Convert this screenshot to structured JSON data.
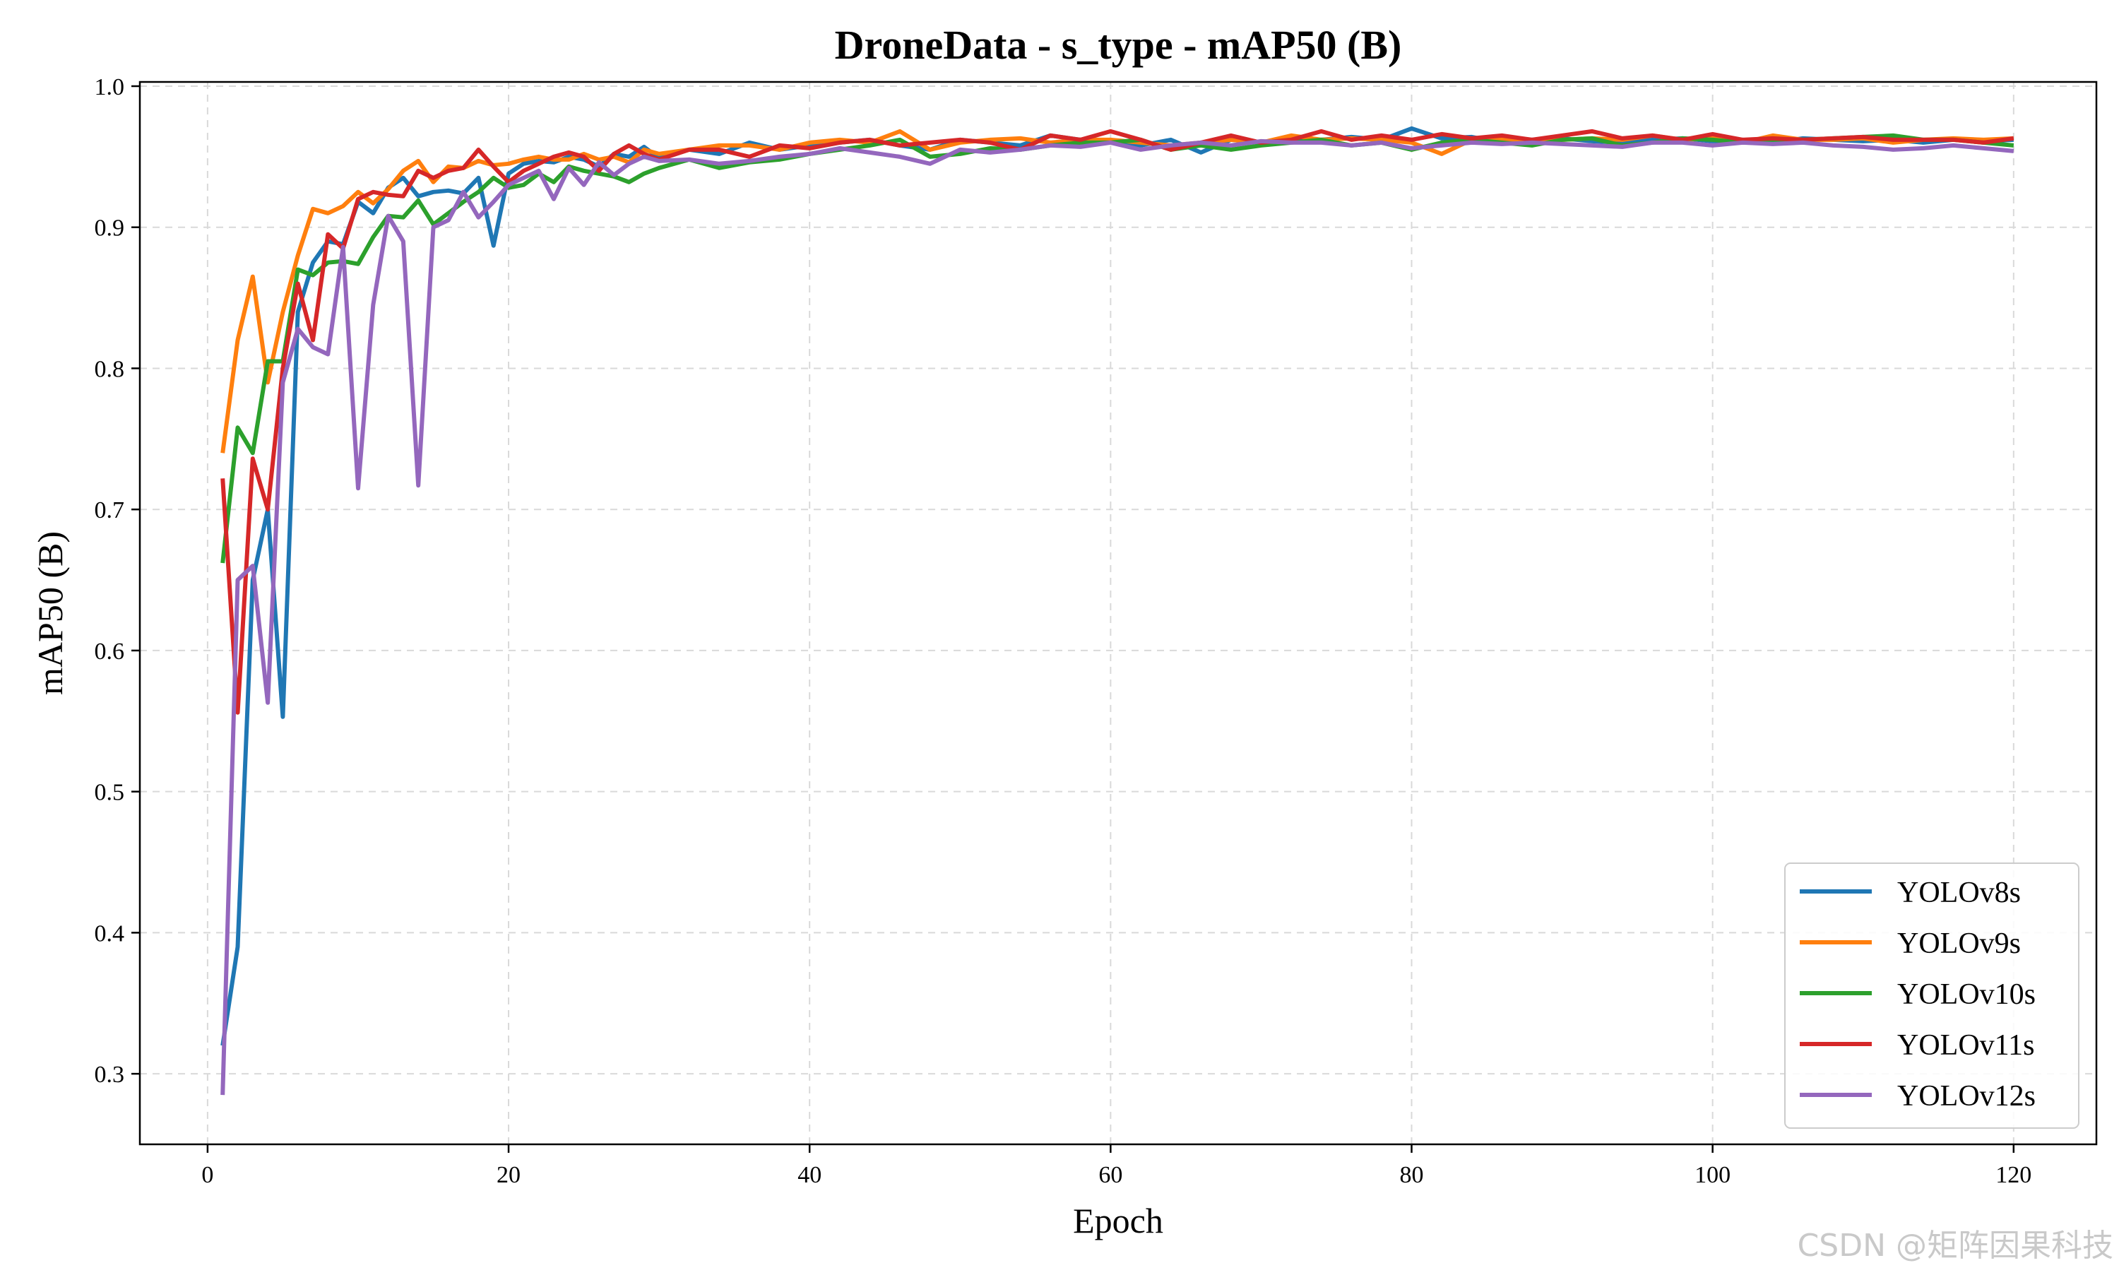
{
  "chart_data": {
    "type": "line",
    "title": "DroneData - s_type - mAP50 (B)",
    "xlabel": "Epoch",
    "ylabel": "mAP50 (B)",
    "xlim": [
      -4.5,
      125.5
    ],
    "ylim": [
      0.25,
      1.003
    ],
    "x_ticks": [
      0,
      20,
      40,
      60,
      80,
      100,
      120
    ],
    "y_ticks": [
      0.3,
      0.4,
      0.5,
      0.6,
      0.7,
      0.8,
      0.9,
      1.0
    ],
    "x_tick_labels": [
      "0",
      "20",
      "40",
      "60",
      "80",
      "100",
      "120"
    ],
    "y_tick_labels": [
      "0.3",
      "0.4",
      "0.5",
      "0.6",
      "0.7",
      "0.8",
      "0.9",
      "1.0"
    ],
    "grid": true,
    "legend_position": "bottom-right",
    "series": [
      {
        "name": "YOLOv8s",
        "color": "#1f77b4",
        "x": [
          1,
          2,
          3,
          4,
          5,
          6,
          7,
          8,
          9,
          10,
          11,
          12,
          13,
          14,
          15,
          16,
          17,
          18,
          19,
          20,
          21,
          22,
          23,
          24,
          25,
          26,
          27,
          28,
          29,
          30,
          32,
          34,
          36,
          38,
          40,
          42,
          44,
          46,
          48,
          50,
          52,
          54,
          56,
          58,
          60,
          62,
          64,
          66,
          68,
          70,
          72,
          74,
          76,
          78,
          80,
          82,
          84,
          86,
          88,
          90,
          92,
          94,
          96,
          98,
          100,
          102,
          104,
          106,
          108,
          110,
          112,
          114,
          116,
          118,
          120
        ],
        "values": [
          0.32,
          0.39,
          0.65,
          0.7,
          0.553,
          0.84,
          0.875,
          0.89,
          0.888,
          0.918,
          0.91,
          0.928,
          0.935,
          0.922,
          0.925,
          0.926,
          0.924,
          0.935,
          0.887,
          0.938,
          0.945,
          0.947,
          0.946,
          0.95,
          0.948,
          0.943,
          0.952,
          0.95,
          0.957,
          0.949,
          0.955,
          0.952,
          0.96,
          0.955,
          0.958,
          0.96,
          0.962,
          0.958,
          0.955,
          0.962,
          0.96,
          0.958,
          0.965,
          0.962,
          0.96,
          0.958,
          0.962,
          0.953,
          0.962,
          0.96,
          0.961,
          0.962,
          0.964,
          0.962,
          0.97,
          0.963,
          0.964,
          0.96,
          0.962,
          0.963,
          0.961,
          0.96,
          0.962,
          0.963,
          0.961,
          0.962,
          0.96,
          0.963,
          0.962,
          0.961,
          0.962,
          0.96,
          0.962,
          0.961,
          0.962
        ]
      },
      {
        "name": "YOLOv9s",
        "color": "#ff7f0e",
        "x": [
          1,
          2,
          3,
          4,
          5,
          6,
          7,
          8,
          9,
          10,
          11,
          12,
          13,
          14,
          15,
          16,
          17,
          18,
          19,
          20,
          21,
          22,
          23,
          24,
          25,
          26,
          27,
          28,
          29,
          30,
          32,
          34,
          36,
          38,
          40,
          42,
          44,
          46,
          48,
          50,
          52,
          54,
          56,
          58,
          60,
          62,
          64,
          66,
          68,
          70,
          72,
          74,
          76,
          78,
          80,
          82,
          84,
          86,
          88,
          90,
          92,
          94,
          96,
          98,
          100,
          102,
          104,
          106,
          108,
          110,
          112,
          114,
          116,
          118,
          120
        ],
        "values": [
          0.74,
          0.82,
          0.865,
          0.79,
          0.84,
          0.88,
          0.913,
          0.91,
          0.915,
          0.925,
          0.917,
          0.927,
          0.94,
          0.947,
          0.932,
          0.943,
          0.942,
          0.947,
          0.944,
          0.945,
          0.948,
          0.95,
          0.948,
          0.948,
          0.952,
          0.948,
          0.95,
          0.946,
          0.955,
          0.952,
          0.955,
          0.958,
          0.958,
          0.955,
          0.96,
          0.962,
          0.96,
          0.968,
          0.955,
          0.96,
          0.962,
          0.963,
          0.96,
          0.962,
          0.962,
          0.96,
          0.958,
          0.96,
          0.962,
          0.96,
          0.965,
          0.962,
          0.963,
          0.962,
          0.96,
          0.952,
          0.962,
          0.963,
          0.96,
          0.962,
          0.963,
          0.962,
          0.965,
          0.962,
          0.963,
          0.96,
          0.965,
          0.962,
          0.962,
          0.963,
          0.96,
          0.962,
          0.963,
          0.962,
          0.963
        ]
      },
      {
        "name": "YOLOv10s",
        "color": "#2ca02c",
        "x": [
          1,
          2,
          3,
          4,
          5,
          6,
          7,
          8,
          9,
          10,
          11,
          12,
          13,
          14,
          15,
          16,
          17,
          18,
          19,
          20,
          21,
          22,
          23,
          24,
          25,
          26,
          27,
          28,
          29,
          30,
          32,
          34,
          36,
          38,
          40,
          42,
          44,
          46,
          48,
          50,
          52,
          54,
          56,
          58,
          60,
          62,
          64,
          66,
          68,
          70,
          72,
          74,
          76,
          78,
          80,
          82,
          84,
          86,
          88,
          90,
          92,
          94,
          96,
          98,
          100,
          102,
          104,
          106,
          108,
          110,
          112,
          114,
          116,
          118,
          120
        ],
        "values": [
          0.662,
          0.758,
          0.74,
          0.805,
          0.805,
          0.87,
          0.866,
          0.875,
          0.876,
          0.874,
          0.893,
          0.908,
          0.907,
          0.919,
          0.902,
          0.91,
          0.918,
          0.925,
          0.935,
          0.928,
          0.93,
          0.938,
          0.932,
          0.943,
          0.94,
          0.938,
          0.936,
          0.932,
          0.938,
          0.942,
          0.948,
          0.942,
          0.946,
          0.948,
          0.952,
          0.955,
          0.958,
          0.962,
          0.95,
          0.952,
          0.956,
          0.955,
          0.958,
          0.96,
          0.96,
          0.962,
          0.955,
          0.958,
          0.955,
          0.958,
          0.96,
          0.962,
          0.958,
          0.96,
          0.955,
          0.96,
          0.962,
          0.96,
          0.958,
          0.962,
          0.963,
          0.958,
          0.96,
          0.963,
          0.962,
          0.96,
          0.962,
          0.962,
          0.963,
          0.964,
          0.965,
          0.962,
          0.962,
          0.96,
          0.958
        ]
      },
      {
        "name": "YOLOv11s",
        "color": "#d62728",
        "x": [
          1,
          2,
          3,
          4,
          5,
          6,
          7,
          8,
          9,
          10,
          11,
          12,
          13,
          14,
          15,
          16,
          17,
          18,
          19,
          20,
          21,
          22,
          23,
          24,
          25,
          26,
          27,
          28,
          29,
          30,
          32,
          34,
          36,
          38,
          40,
          42,
          44,
          46,
          48,
          50,
          52,
          54,
          56,
          58,
          60,
          62,
          64,
          66,
          68,
          70,
          72,
          74,
          76,
          78,
          80,
          82,
          84,
          86,
          88,
          90,
          92,
          94,
          96,
          98,
          100,
          102,
          104,
          106,
          108,
          110,
          112,
          114,
          116,
          118,
          120
        ],
        "values": [
          0.722,
          0.556,
          0.736,
          0.7,
          0.8,
          0.86,
          0.82,
          0.895,
          0.885,
          0.92,
          0.925,
          0.923,
          0.922,
          0.94,
          0.935,
          0.94,
          0.942,
          0.955,
          0.943,
          0.932,
          0.94,
          0.945,
          0.95,
          0.953,
          0.95,
          0.94,
          0.952,
          0.958,
          0.952,
          0.948,
          0.955,
          0.955,
          0.95,
          0.958,
          0.956,
          0.96,
          0.962,
          0.958,
          0.96,
          0.962,
          0.96,
          0.955,
          0.965,
          0.962,
          0.968,
          0.962,
          0.955,
          0.96,
          0.965,
          0.96,
          0.962,
          0.968,
          0.962,
          0.965,
          0.962,
          0.966,
          0.963,
          0.965,
          0.962,
          0.965,
          0.968,
          0.963,
          0.965,
          0.962,
          0.966,
          0.962,
          0.963,
          0.962,
          0.963,
          0.964,
          0.962,
          0.962,
          0.962,
          0.96,
          0.963
        ]
      },
      {
        "name": "YOLOv12s",
        "color": "#9467bd",
        "x": [
          1,
          2,
          3,
          4,
          5,
          6,
          7,
          8,
          9,
          10,
          11,
          12,
          13,
          14,
          15,
          16,
          17,
          18,
          19,
          20,
          21,
          22,
          23,
          24,
          25,
          26,
          27,
          28,
          29,
          30,
          32,
          34,
          36,
          38,
          40,
          42,
          44,
          46,
          48,
          50,
          52,
          54,
          56,
          58,
          60,
          62,
          64,
          66,
          68,
          70,
          72,
          74,
          76,
          78,
          80,
          82,
          84,
          86,
          88,
          90,
          92,
          94,
          96,
          98,
          100,
          102,
          104,
          106,
          108,
          110,
          112,
          114,
          116,
          118,
          120
        ],
        "values": [
          0.285,
          0.65,
          0.66,
          0.563,
          0.79,
          0.828,
          0.815,
          0.81,
          0.886,
          0.715,
          0.845,
          0.908,
          0.89,
          0.717,
          0.9,
          0.905,
          0.925,
          0.907,
          0.918,
          0.93,
          0.935,
          0.94,
          0.92,
          0.942,
          0.93,
          0.946,
          0.937,
          0.945,
          0.95,
          0.947,
          0.948,
          0.945,
          0.947,
          0.95,
          0.952,
          0.956,
          0.953,
          0.95,
          0.945,
          0.955,
          0.953,
          0.955,
          0.958,
          0.957,
          0.96,
          0.955,
          0.958,
          0.96,
          0.958,
          0.961,
          0.96,
          0.96,
          0.958,
          0.96,
          0.956,
          0.958,
          0.96,
          0.959,
          0.96,
          0.959,
          0.958,
          0.957,
          0.96,
          0.96,
          0.958,
          0.96,
          0.959,
          0.96,
          0.958,
          0.957,
          0.955,
          0.956,
          0.958,
          0.956,
          0.954
        ]
      }
    ]
  },
  "watermark": "CSDN @矩阵因果科技"
}
